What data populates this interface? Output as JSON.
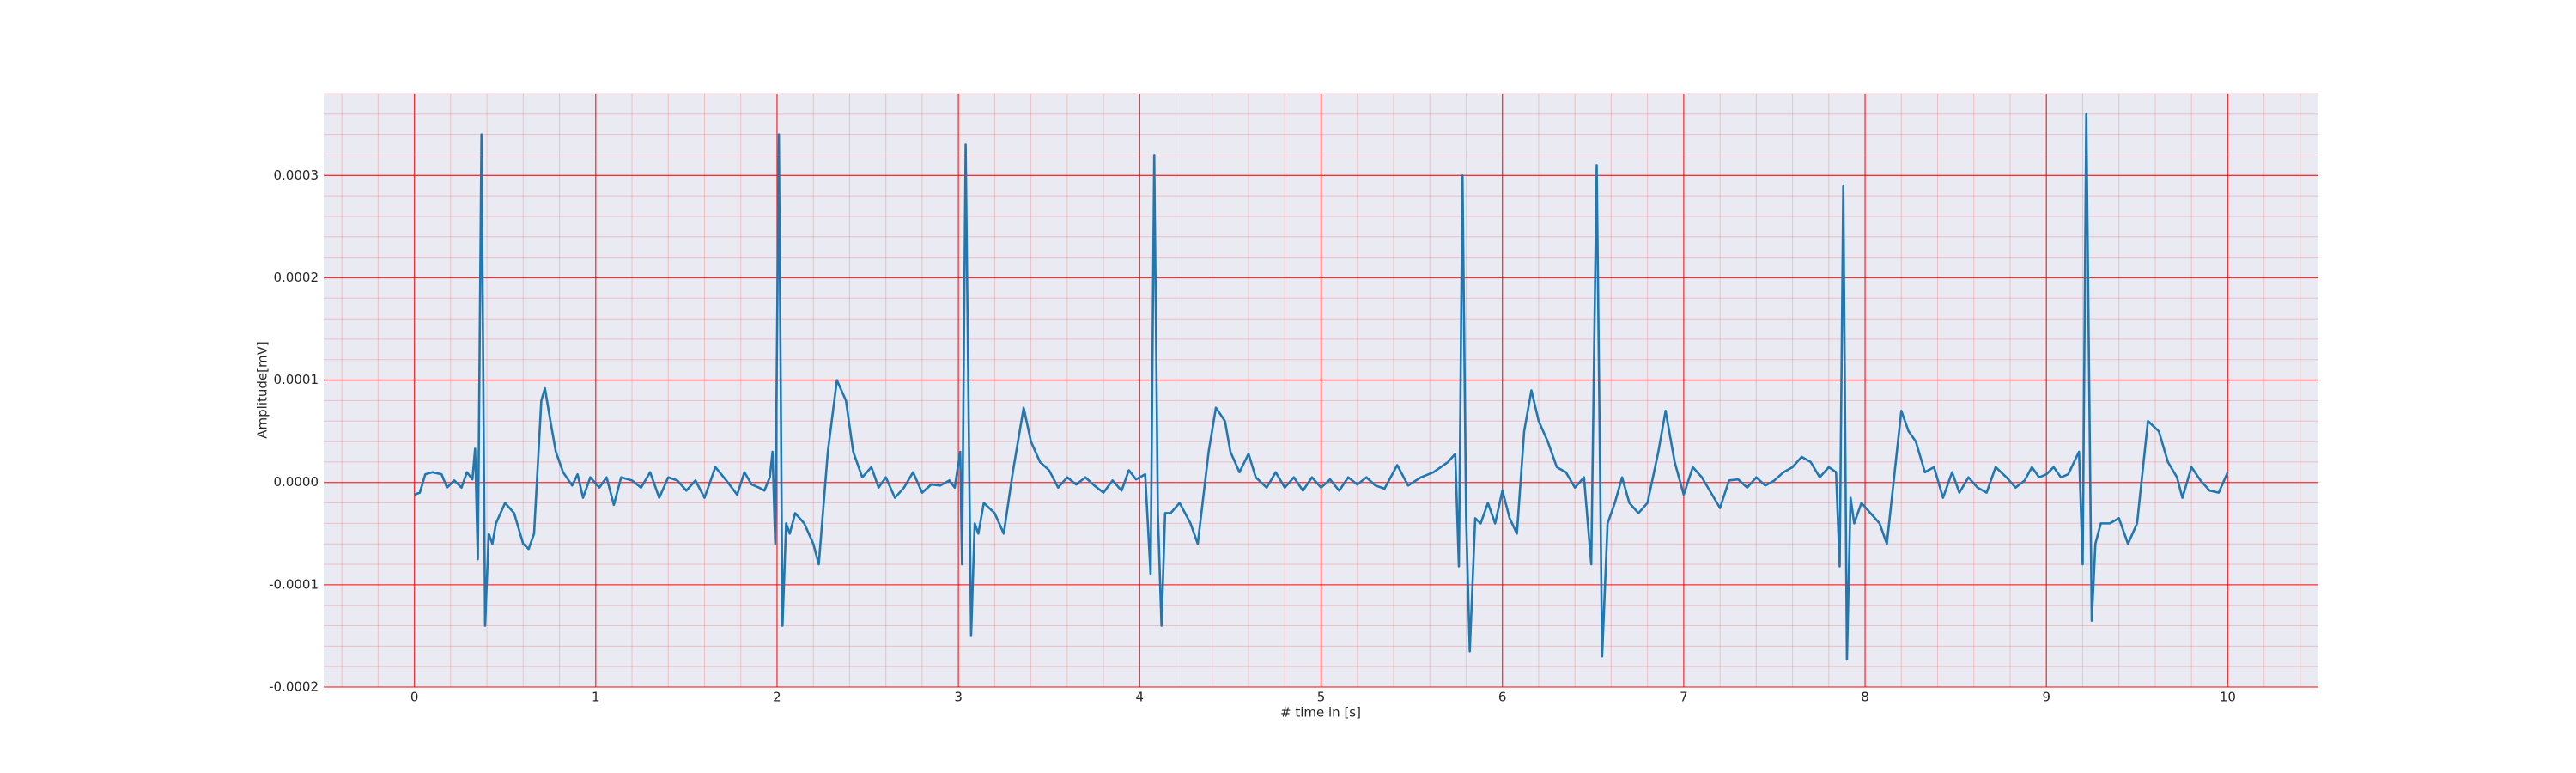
{
  "chart_data": {
    "type": "line",
    "xlabel": "# time in [s]",
    "ylabel": "Amplitude[mV]",
    "color": "#1f77b4",
    "background": "#eaeaf2",
    "grid": true,
    "grid_color": "#ff0000",
    "minor_grid": true,
    "xlim": [
      -0.5,
      10.5
    ],
    "ylim": [
      -0.0002,
      0.00038
    ],
    "xticks": [
      0,
      1,
      2,
      3,
      4,
      5,
      6,
      7,
      8,
      9,
      10
    ],
    "yticks": [
      -0.0002,
      -0.0001,
      {
        "value": 0,
        "label": "0.0000"
      },
      0.0001,
      0.0002,
      0.0003
    ],
    "x": [
      0,
      0.03,
      0.06,
      0.1,
      0.15,
      0.18,
      0.22,
      0.26,
      0.29,
      0.32,
      0.335,
      0.35,
      0.37,
      0.39,
      0.41,
      0.43,
      0.45,
      0.5,
      0.55,
      0.6,
      0.63,
      0.66,
      0.7,
      0.72,
      0.75,
      0.78,
      0.82,
      0.87,
      0.9,
      0.93,
      0.97,
      1.02,
      1.06,
      1.1,
      1.14,
      1.2,
      1.25,
      1.3,
      1.35,
      1.4,
      1.45,
      1.5,
      1.55,
      1.6,
      1.66,
      1.72,
      1.78,
      1.82,
      1.86,
      1.9,
      1.93,
      1.96,
      1.975,
      1.99,
      2.01,
      2.03,
      2.05,
      2.07,
      2.1,
      2.15,
      2.2,
      2.23,
      2.28,
      2.33,
      2.38,
      2.42,
      2.47,
      2.52,
      2.56,
      2.6,
      2.65,
      2.7,
      2.75,
      2.8,
      2.85,
      2.9,
      2.95,
      2.98,
      3.01,
      3.02,
      3.04,
      3.07,
      3.09,
      3.11,
      3.14,
      3.2,
      3.25,
      3.3,
      3.36,
      3.4,
      3.45,
      3.5,
      3.55,
      3.6,
      3.65,
      3.7,
      3.75,
      3.8,
      3.85,
      3.9,
      3.94,
      3.98,
      4.03,
      4.06,
      4.08,
      4.1,
      4.12,
      4.14,
      4.17,
      4.22,
      4.28,
      4.32,
      4.38,
      4.42,
      4.47,
      4.5,
      4.55,
      4.6,
      4.64,
      4.7,
      4.75,
      4.8,
      4.85,
      4.9,
      4.95,
      5.0,
      5.05,
      5.1,
      5.15,
      5.2,
      5.25,
      5.3,
      5.35,
      5.42,
      5.48,
      5.55,
      5.62,
      5.7,
      5.74,
      5.76,
      5.78,
      5.8,
      5.82,
      5.85,
      5.88,
      5.92,
      5.96,
      6.0,
      6.04,
      6.08,
      6.12,
      6.16,
      6.2,
      6.25,
      6.3,
      6.35,
      6.4,
      6.45,
      6.49,
      6.52,
      6.55,
      6.58,
      6.62,
      6.66,
      6.7,
      6.75,
      6.8,
      6.86,
      6.9,
      6.95,
      7.0,
      7.05,
      7.1,
      7.15,
      7.2,
      7.25,
      7.3,
      7.35,
      7.4,
      7.45,
      7.5,
      7.55,
      7.6,
      7.65,
      7.7,
      7.75,
      7.8,
      7.84,
      7.86,
      7.88,
      7.9,
      7.92,
      7.94,
      7.98,
      8.03,
      8.08,
      8.12,
      8.2,
      8.24,
      8.28,
      8.33,
      8.38,
      8.43,
      8.48,
      8.52,
      8.57,
      8.62,
      8.67,
      8.72,
      8.78,
      8.83,
      8.88,
      8.92,
      8.96,
      9.0,
      9.04,
      9.08,
      9.12,
      9.18,
      9.2,
      9.22,
      9.25,
      9.27,
      9.3,
      9.35,
      9.4,
      9.45,
      9.5,
      9.56,
      9.62,
      9.67,
      9.72,
      9.75,
      9.8,
      9.85,
      9.9,
      9.95,
      10.0
    ],
    "values": [
      -1.2e-05,
      -1e-05,
      8e-06,
      1e-05,
      8e-06,
      -5e-06,
      2e-06,
      -5e-06,
      1e-05,
      3e-06,
      3.3e-05,
      -7.5e-05,
      0.00034,
      -0.00014,
      -5e-05,
      -6e-05,
      -4e-05,
      -2e-05,
      -3e-05,
      -6e-05,
      -6.5e-05,
      -5e-05,
      8e-05,
      9.2e-05,
      6e-05,
      3e-05,
      1e-05,
      -3e-06,
      8e-06,
      -1.5e-05,
      5e-06,
      -5e-06,
      5e-06,
      -2.2e-05,
      5e-06,
      2e-06,
      -5e-06,
      1e-05,
      -1.5e-05,
      5e-06,
      2e-06,
      -8e-06,
      2e-06,
      -1.5e-05,
      1.5e-05,
      2e-06,
      -1.2e-05,
      1e-05,
      -2e-06,
      -5e-06,
      -8e-06,
      5e-06,
      3e-05,
      -6e-05,
      0.00034,
      -0.00014,
      -4e-05,
      -5e-05,
      -3e-05,
      -4e-05,
      -6e-05,
      -8e-05,
      3e-05,
      0.0001,
      8e-05,
      3e-05,
      5e-06,
      1.5e-05,
      -5e-06,
      5e-06,
      -1.5e-05,
      -5e-06,
      1e-05,
      -1e-05,
      -2e-06,
      -3e-06,
      2e-06,
      -5e-06,
      3e-05,
      -8e-05,
      0.00033,
      -0.00015,
      -4e-05,
      -5e-05,
      -2e-05,
      -3e-05,
      -5e-05,
      1e-05,
      7.3e-05,
      4e-05,
      2e-05,
      1.2e-05,
      -5e-06,
      5e-06,
      -2e-06,
      5e-06,
      -3e-06,
      -1e-05,
      2e-06,
      -8e-06,
      1.2e-05,
      3e-06,
      8e-06,
      -9e-05,
      0.00032,
      -3e-05,
      -0.00014,
      -3e-05,
      -3e-05,
      -2e-05,
      -4e-05,
      -6e-05,
      3e-05,
      7.3e-05,
      6e-05,
      3e-05,
      1e-05,
      2.8e-05,
      5e-06,
      -5e-06,
      1e-05,
      -5e-06,
      5e-06,
      -8e-06,
      5e-06,
      -5e-06,
      3e-06,
      -8e-06,
      5e-06,
      -2e-06,
      5e-06,
      -3e-06,
      -6e-06,
      1.7e-05,
      -3e-06,
      5e-06,
      1e-05,
      2e-05,
      2.8e-05,
      -8.2e-05,
      0.0003,
      -3.5e-05,
      -0.000165,
      -3.5e-05,
      -4e-05,
      -2e-05,
      -4e-05,
      -8e-06,
      -3.5e-05,
      -5e-05,
      5e-05,
      9e-05,
      6e-05,
      4e-05,
      1.5e-05,
      1e-05,
      -5e-06,
      5e-06,
      -8e-05,
      0.00031,
      -0.00017,
      -4e-05,
      -2e-05,
      5e-06,
      -2e-05,
      -3e-05,
      -2e-05,
      3e-05,
      7e-05,
      2e-05,
      -1.2e-05,
      1.5e-05,
      5e-06,
      -1e-05,
      -2.5e-05,
      2e-06,
      3e-06,
      -5e-06,
      5e-06,
      -3e-06,
      2e-06,
      1e-05,
      1.5e-05,
      2.5e-05,
      2e-05,
      5e-06,
      1.5e-05,
      1e-05,
      -8.2e-05,
      0.00029,
      -0.000173,
      -1.5e-05,
      -4e-05,
      -2e-05,
      -3e-05,
      -4e-05,
      -6e-05,
      7e-05,
      5e-05,
      4e-05,
      1e-05,
      1.5e-05,
      -1.5e-05,
      1e-05,
      -1e-05,
      5e-06,
      -5e-06,
      -1e-05,
      1.5e-05,
      5e-06,
      -5e-06,
      2e-06,
      1.5e-05,
      5e-06,
      8e-06,
      1.5e-05,
      5e-06,
      8e-06,
      3e-05,
      -8e-05,
      0.00036,
      -0.000135,
      -6e-05,
      -4e-05,
      -4e-05,
      -3.5e-05,
      -6e-05,
      -4e-05,
      6e-05,
      5e-05,
      2e-05,
      5e-06,
      -1.5e-05,
      1.5e-05,
      2e-06,
      -8e-06,
      -1e-05,
      1e-05
    ]
  }
}
